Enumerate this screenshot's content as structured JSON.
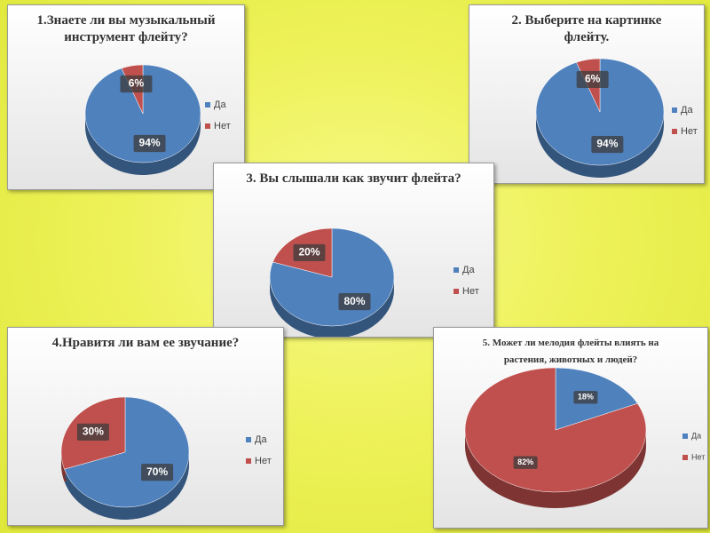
{
  "chart_data": [
    {
      "type": "pie",
      "title": "1.Знаете ли вы музыкальный инструмент флейту?",
      "categories": [
        "Да",
        "Нет"
      ],
      "values": [
        94,
        6
      ],
      "value_labels": [
        "94%",
        "6%"
      ],
      "colors": [
        "#4f81bd",
        "#c0504d"
      ],
      "legend": "right"
    },
    {
      "type": "pie",
      "title": "2. Выберите на картинке флейту.",
      "categories": [
        "Да",
        "Нет"
      ],
      "values": [
        94,
        6
      ],
      "value_labels": [
        "94%",
        "6%"
      ],
      "colors": [
        "#4f81bd",
        "#c0504d"
      ],
      "legend": "right"
    },
    {
      "type": "pie",
      "title": "3. Вы слышали как звучит флейта?",
      "categories": [
        "Да",
        "Нет"
      ],
      "values": [
        80,
        20
      ],
      "value_labels": [
        "80%",
        "20%"
      ],
      "colors": [
        "#4f81bd",
        "#c0504d"
      ],
      "legend": "right"
    },
    {
      "type": "pie",
      "title": "4.Нравитя ли вам ее звучание?",
      "categories": [
        "Да",
        "Нет"
      ],
      "values": [
        70,
        30
      ],
      "value_labels": [
        "70%",
        "30%"
      ],
      "colors": [
        "#4f81bd",
        "#c0504d"
      ],
      "legend": "right"
    },
    {
      "type": "pie",
      "title": "5. Может ли мелодия флейты влиять на растения, животных и людей?",
      "categories": [
        "Да",
        "Нет"
      ],
      "values": [
        18,
        82
      ],
      "value_labels": [
        "18%",
        "82%"
      ],
      "colors": [
        "#4f81bd",
        "#c0504d"
      ],
      "legend": "right"
    }
  ]
}
